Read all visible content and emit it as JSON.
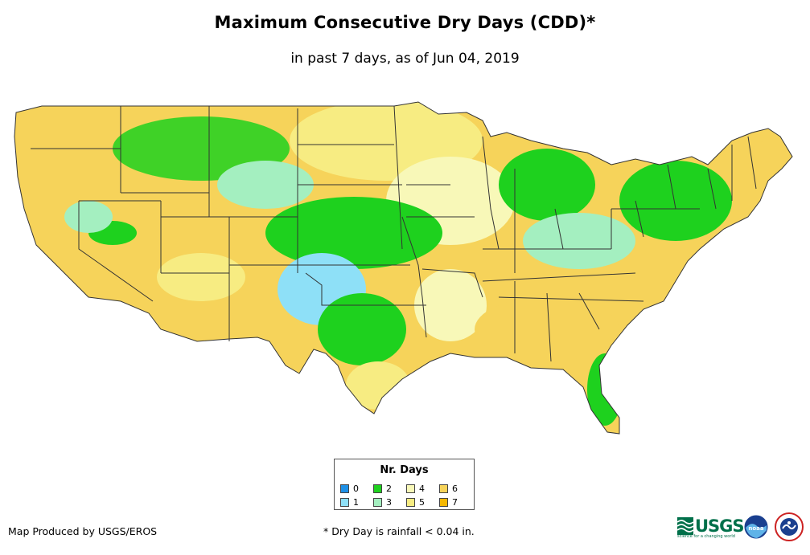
{
  "title": "Maximum Consecutive Dry Days (CDD)*",
  "subtitle": "in past 7 days, as of Jun 04, 2019",
  "legend": {
    "title": "Nr. Days",
    "items": [
      {
        "label": "0",
        "color": "#1e90e6"
      },
      {
        "label": "1",
        "color": "#8ee0f7"
      },
      {
        "label": "2",
        "color": "#1ed11e"
      },
      {
        "label": "3",
        "color": "#a4efc0"
      },
      {
        "label": "4",
        "color": "#f8f8b8"
      },
      {
        "label": "5",
        "color": "#f7ec82"
      },
      {
        "label": "6",
        "color": "#f6d35a"
      },
      {
        "label": "7",
        "color": "#f5b800"
      }
    ]
  },
  "credit": "Map Produced by USGS/EROS",
  "footnote": "* Dry Day is rainfall < 0.04 in.",
  "logos": {
    "usgs": "USGS",
    "usgs_tagline": "science for a changing world",
    "noaa": "noaa",
    "nws": "NATIONAL WEATHER SERVICE"
  },
  "map": {
    "region": "Contiguous United States",
    "state_boundary_color": "#333333",
    "regions": [
      {
        "area": "West Coast / Great Basin / Southwest",
        "category": "6"
      },
      {
        "area": "Northern Rockies",
        "category": "2"
      },
      {
        "area": "Northern Plains",
        "category": "5"
      },
      {
        "area": "Central Plains (Kansas, Nebraska)",
        "category": "2"
      },
      {
        "area": "Oklahoma / North Texas",
        "category": "1"
      },
      {
        "area": "Central Texas",
        "category": "2"
      },
      {
        "area": "Great Lakes / Michigan",
        "category": "2"
      },
      {
        "area": "Ohio Valley",
        "category": "3"
      },
      {
        "area": "Mid-Atlantic / Northeast",
        "category": "2"
      },
      {
        "area": "Lower Mississippi Valley",
        "category": "4"
      },
      {
        "area": "Southeast (Georgia, Alabama, Carolinas)",
        "category": "6"
      },
      {
        "area": "Florida",
        "category": "2"
      },
      {
        "area": "Maine",
        "category": "6"
      },
      {
        "area": "Upper Midwest (Minnesota, Iowa)",
        "category": "4"
      }
    ]
  }
}
